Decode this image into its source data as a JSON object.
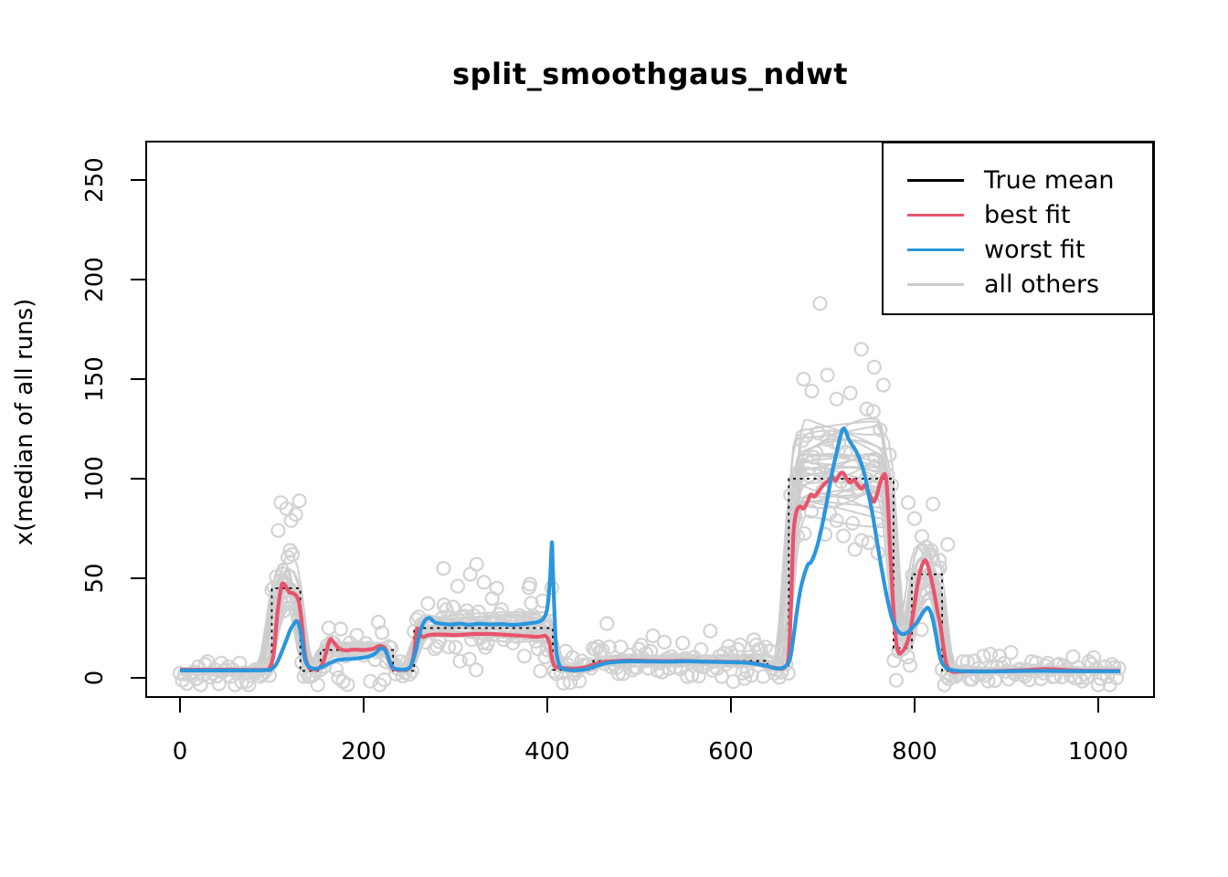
{
  "title": "split_smoothgaus_ndwt",
  "ylabel": "x(median of all runs)",
  "legend": {
    "position": "top-right",
    "items": [
      {
        "label": "True mean",
        "color": "#000000"
      },
      {
        "label": "best fit",
        "color": "#e8546c"
      },
      {
        "label": "worst fit",
        "color": "#2b96dd"
      },
      {
        "label": "all others",
        "color": "#cccccc"
      }
    ]
  },
  "chart_data": {
    "type": "line",
    "title": "split_smoothgaus_ndwt",
    "xlabel": "",
    "ylabel": "x(median of all runs)",
    "xlim": [
      -37,
      1060
    ],
    "ylim": [
      -9.5,
      269
    ],
    "xticks": [
      0,
      200,
      400,
      600,
      800,
      1000
    ],
    "yticks": [
      0,
      50,
      100,
      150,
      200,
      250
    ],
    "grid": false,
    "colors": {
      "true_mean": "#000000",
      "best_fit": "#e8546c",
      "worst_fit": "#2b96dd",
      "other_lines": "#cccccc",
      "scatter": "#d3d3d3"
    },
    "true_mean_segments": [
      [
        0,
        100,
        3.5
      ],
      [
        100,
        131,
        45
      ],
      [
        131,
        153,
        3.5
      ],
      [
        153,
        232,
        14
      ],
      [
        232,
        255,
        3.5
      ],
      [
        255,
        406,
        25
      ],
      [
        406,
        450,
        4
      ],
      [
        450,
        640,
        8.5
      ],
      [
        640,
        663,
        5
      ],
      [
        663,
        777,
        100
      ],
      [
        777,
        797,
        15
      ],
      [
        797,
        830,
        52
      ],
      [
        830,
        1024,
        3.5
      ]
    ],
    "best_fit": [
      [
        0,
        4.1
      ],
      [
        50,
        4.1
      ],
      [
        90,
        4.0
      ],
      [
        97,
        4.6
      ],
      [
        102,
        12
      ],
      [
        106,
        32
      ],
      [
        110,
        45
      ],
      [
        112,
        47.5
      ],
      [
        115,
        46
      ],
      [
        119,
        43
      ],
      [
        123,
        42.5
      ],
      [
        127,
        41
      ],
      [
        130,
        37
      ],
      [
        133,
        26
      ],
      [
        136,
        12
      ],
      [
        140,
        5.5
      ],
      [
        145,
        4.3
      ],
      [
        151,
        4.6
      ],
      [
        156,
        8
      ],
      [
        161,
        16
      ],
      [
        164,
        19.5
      ],
      [
        168,
        17.5
      ],
      [
        173,
        14.8
      ],
      [
        180,
        13.8
      ],
      [
        190,
        14.2
      ],
      [
        200,
        14
      ],
      [
        210,
        14.6
      ],
      [
        217,
        16
      ],
      [
        223,
        15
      ],
      [
        227,
        10
      ],
      [
        231,
        5
      ],
      [
        237,
        4
      ],
      [
        245,
        4.1
      ],
      [
        251,
        5.5
      ],
      [
        255,
        13
      ],
      [
        258,
        24.5
      ],
      [
        261,
        22
      ],
      [
        265,
        20.5
      ],
      [
        271,
        21.5
      ],
      [
        282,
        21.8
      ],
      [
        300,
        21.5
      ],
      [
        320,
        22
      ],
      [
        340,
        22
      ],
      [
        358,
        21.5
      ],
      [
        375,
        21
      ],
      [
        390,
        20.6
      ],
      [
        398,
        21
      ],
      [
        402,
        18
      ],
      [
        405,
        10
      ],
      [
        408,
        6
      ],
      [
        412,
        5.2
      ],
      [
        420,
        4.8
      ],
      [
        430,
        4.7
      ],
      [
        440,
        5.2
      ],
      [
        450,
        6.6
      ],
      [
        460,
        7.9
      ],
      [
        472,
        8.4
      ],
      [
        490,
        8.7
      ],
      [
        510,
        8.5
      ],
      [
        530,
        8.4
      ],
      [
        550,
        8.5
      ],
      [
        570,
        8.2
      ],
      [
        590,
        8.1
      ],
      [
        610,
        7.9
      ],
      [
        625,
        7.3
      ],
      [
        638,
        6.1
      ],
      [
        650,
        4.9
      ],
      [
        658,
        5.2
      ],
      [
        663,
        12
      ],
      [
        666,
        45
      ],
      [
        668,
        72
      ],
      [
        671,
        83
      ],
      [
        675,
        86
      ],
      [
        679,
        85
      ],
      [
        683,
        88
      ],
      [
        687,
        92
      ],
      [
        691,
        91
      ],
      [
        696,
        94
      ],
      [
        701,
        97
      ],
      [
        706,
        99
      ],
      [
        710,
        101
      ],
      [
        714,
        99
      ],
      [
        718,
        102
      ],
      [
        722,
        103
      ],
      [
        726,
        100
      ],
      [
        730,
        98
      ],
      [
        734,
        99.5
      ],
      [
        738,
        97
      ],
      [
        742,
        95
      ],
      [
        746,
        96.5
      ],
      [
        750,
        93
      ],
      [
        753,
        90
      ],
      [
        756,
        88.5
      ],
      [
        759,
        92
      ],
      [
        762,
        97
      ],
      [
        765,
        101
      ],
      [
        768,
        102
      ],
      [
        770,
        95
      ],
      [
        772,
        78
      ],
      [
        774,
        58
      ],
      [
        777,
        34
      ],
      [
        780,
        18
      ],
      [
        783,
        12.5
      ],
      [
        786,
        13
      ],
      [
        790,
        15.5
      ],
      [
        794,
        21
      ],
      [
        798,
        31
      ],
      [
        803,
        46
      ],
      [
        807,
        55
      ],
      [
        811,
        59
      ],
      [
        814,
        57
      ],
      [
        818,
        50
      ],
      [
        822,
        41
      ],
      [
        825,
        33
      ],
      [
        828,
        27
      ],
      [
        831,
        17
      ],
      [
        834,
        8
      ],
      [
        838,
        4
      ],
      [
        843,
        2.9
      ],
      [
        848,
        3.1
      ],
      [
        860,
        3.3
      ],
      [
        880,
        3.3
      ],
      [
        900,
        3.6
      ],
      [
        920,
        3.9
      ],
      [
        940,
        4.4
      ],
      [
        952,
        4.3
      ],
      [
        965,
        3.9
      ],
      [
        985,
        3.6
      ],
      [
        1005,
        3.5
      ],
      [
        1024,
        3.5
      ]
    ],
    "worst_fit": [
      [
        0,
        3.7
      ],
      [
        50,
        3.7
      ],
      [
        92,
        3.8
      ],
      [
        100,
        4.6
      ],
      [
        105,
        7
      ],
      [
        110,
        12
      ],
      [
        115,
        18
      ],
      [
        120,
        24
      ],
      [
        124,
        27
      ],
      [
        127,
        28.5
      ],
      [
        130,
        26
      ],
      [
        133,
        18
      ],
      [
        136,
        9.5
      ],
      [
        140,
        5.8
      ],
      [
        146,
        4.6
      ],
      [
        152,
        5
      ],
      [
        158,
        6.2
      ],
      [
        164,
        7.6
      ],
      [
        170,
        8.8
      ],
      [
        178,
        9.3
      ],
      [
        186,
        9.5
      ],
      [
        195,
        9.9
      ],
      [
        205,
        10.6
      ],
      [
        212,
        12
      ],
      [
        217,
        14.3
      ],
      [
        221,
        14.8
      ],
      [
        225,
        12.5
      ],
      [
        229,
        7.5
      ],
      [
        233,
        4.8
      ],
      [
        240,
        4.2
      ],
      [
        247,
        4.4
      ],
      [
        252,
        6.5
      ],
      [
        257,
        14
      ],
      [
        262,
        24
      ],
      [
        267,
        29
      ],
      [
        272,
        30
      ],
      [
        277,
        28
      ],
      [
        284,
        27.2
      ],
      [
        295,
        26.8
      ],
      [
        305,
        27.2
      ],
      [
        315,
        26.6
      ],
      [
        325,
        27.1
      ],
      [
        338,
        26.8
      ],
      [
        350,
        27
      ],
      [
        362,
        26.6
      ],
      [
        374,
        27
      ],
      [
        384,
        27.6
      ],
      [
        391,
        28.2
      ],
      [
        396,
        30
      ],
      [
        400,
        35
      ],
      [
        403,
        50
      ],
      [
        405,
        68
      ],
      [
        406,
        56
      ],
      [
        408,
        30
      ],
      [
        410,
        13
      ],
      [
        413,
        6.5
      ],
      [
        417,
        4.6
      ],
      [
        424,
        3.9
      ],
      [
        432,
        3.8
      ],
      [
        442,
        4.3
      ],
      [
        452,
        5.8
      ],
      [
        462,
        7.2
      ],
      [
        474,
        8
      ],
      [
        492,
        8.3
      ],
      [
        512,
        8.2
      ],
      [
        532,
        8.1
      ],
      [
        552,
        8.3
      ],
      [
        572,
        8.1
      ],
      [
        592,
        7.9
      ],
      [
        612,
        7.7
      ],
      [
        626,
        7.1
      ],
      [
        639,
        5.9
      ],
      [
        650,
        4.7
      ],
      [
        658,
        5.4
      ],
      [
        664,
        9
      ],
      [
        668,
        20
      ],
      [
        672,
        34
      ],
      [
        676,
        45
      ],
      [
        680,
        52
      ],
      [
        684,
        57
      ],
      [
        687,
        58
      ],
      [
        691,
        62
      ],
      [
        695,
        68
      ],
      [
        699,
        76
      ],
      [
        703,
        85
      ],
      [
        707,
        95
      ],
      [
        711,
        105
      ],
      [
        715,
        113
      ],
      [
        719,
        121
      ],
      [
        722,
        125
      ],
      [
        725,
        124
      ],
      [
        728,
        120
      ],
      [
        732,
        117
      ],
      [
        736,
        114
      ],
      [
        740,
        110
      ],
      [
        745,
        103
      ],
      [
        750,
        92
      ],
      [
        755,
        80
      ],
      [
        760,
        66
      ],
      [
        764,
        55
      ],
      [
        768,
        45
      ],
      [
        772,
        36
      ],
      [
        776,
        29
      ],
      [
        780,
        25
      ],
      [
        784,
        22.5
      ],
      [
        788,
        22
      ],
      [
        793,
        23
      ],
      [
        798,
        25.5
      ],
      [
        803,
        28
      ],
      [
        808,
        32
      ],
      [
        812,
        34.5
      ],
      [
        815,
        35
      ],
      [
        819,
        31
      ],
      [
        823,
        22
      ],
      [
        826,
        14
      ],
      [
        829,
        8.5
      ],
      [
        833,
        5.5
      ],
      [
        838,
        4.2
      ],
      [
        845,
        3.6
      ],
      [
        855,
        3.3
      ],
      [
        875,
        3.2
      ],
      [
        900,
        3.3
      ],
      [
        930,
        3.5
      ],
      [
        960,
        3.4
      ],
      [
        1000,
        3.3
      ],
      [
        1024,
        3.3
      ]
    ],
    "other_runs": {
      "n_lines": 30,
      "description": "~30 gray smoothed fits scattered around the true mean, spread grows as 2*sqrt(level)"
    },
    "scatter": {
      "n_points": 410,
      "x_step": 2.5,
      "noise_model": "value = true_mean + 2*sqrt(true_mean)*N(0,1)",
      "outliers": [
        [
          697,
          188
        ],
        [
          742,
          165
        ],
        [
          756,
          156
        ],
        [
          766,
          147
        ],
        [
          679,
          150
        ],
        [
          688,
          144
        ],
        [
          705,
          152
        ],
        [
          715,
          140
        ],
        [
          730,
          143
        ],
        [
          748,
          135
        ],
        [
          110,
          88
        ],
        [
          116,
          85
        ],
        [
          121,
          79
        ],
        [
          107,
          74
        ],
        [
          126,
          82
        ],
        [
          316,
          52
        ],
        [
          323,
          57
        ],
        [
          331,
          48
        ],
        [
          345,
          45
        ],
        [
          381,
          47
        ],
        [
          287,
          55
        ],
        [
          793,
          88
        ],
        [
          800,
          80
        ],
        [
          808,
          71
        ],
        [
          818,
          64
        ],
        [
          827,
          59
        ],
        [
          836,
          67
        ],
        [
          162,
          25
        ],
        [
          216,
          28
        ]
      ]
    }
  }
}
